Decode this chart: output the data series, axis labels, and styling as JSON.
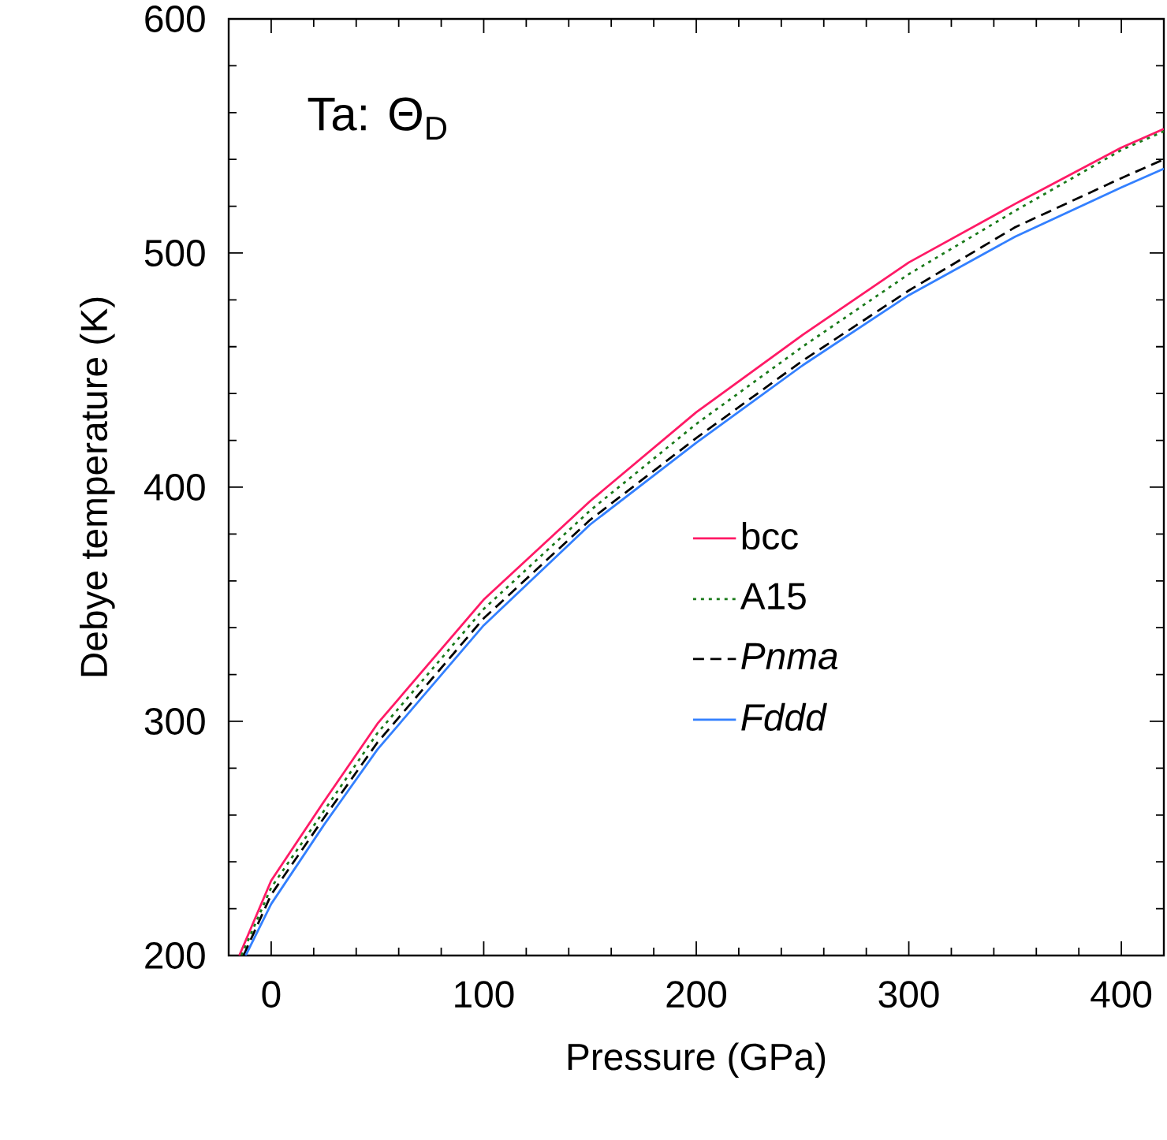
{
  "chart_data": {
    "type": "line",
    "xlabel": "Pressure (GPa)",
    "ylabel": "Debye temperature (K)",
    "annotations": [
      "Ta: Θ$_{D}$"
    ],
    "xlim": [
      -20,
      420
    ],
    "ylim": [
      200,
      600
    ],
    "xticks": [
      0,
      100,
      200,
      300,
      400
    ],
    "yticks": [
      200,
      300,
      400,
      500,
      600
    ],
    "legend": "right",
    "grid": false,
    "series": [
      {
        "name": "bcc",
        "color": "#ff1a66",
        "line_style": "solid",
        "x": [
          -15,
          0,
          25,
          50,
          100,
          150,
          200,
          250,
          300,
          350,
          400,
          420
        ],
        "values": [
          200,
          232,
          266,
          299,
          352,
          394,
          432,
          465,
          496,
          521,
          545,
          553
        ]
      },
      {
        "name": "A15",
        "color": "#1a7a1a",
        "line_style": "dotted",
        "x": [
          -14,
          0,
          25,
          50,
          100,
          150,
          200,
          250,
          300,
          350,
          400,
          420
        ],
        "values": [
          200,
          229,
          262,
          295,
          348,
          390,
          427,
          460,
          491,
          518,
          544,
          552
        ]
      },
      {
        "name": "*Pnma*",
        "color": "#000000",
        "line_style": "dashed",
        "x": [
          -13,
          0,
          25,
          50,
          100,
          150,
          200,
          250,
          300,
          350,
          400,
          420
        ],
        "values": [
          200,
          226,
          259,
          291,
          344,
          386,
          421,
          454,
          484,
          511,
          532,
          540
        ]
      },
      {
        "name": "*Fddd*",
        "color": "#3380ff",
        "line_style": "solid",
        "x": [
          -12,
          0,
          25,
          50,
          100,
          150,
          200,
          250,
          300,
          350,
          400,
          420
        ],
        "values": [
          200,
          222,
          256,
          288,
          341,
          384,
          419,
          452,
          482,
          507,
          528,
          536
        ]
      }
    ]
  }
}
